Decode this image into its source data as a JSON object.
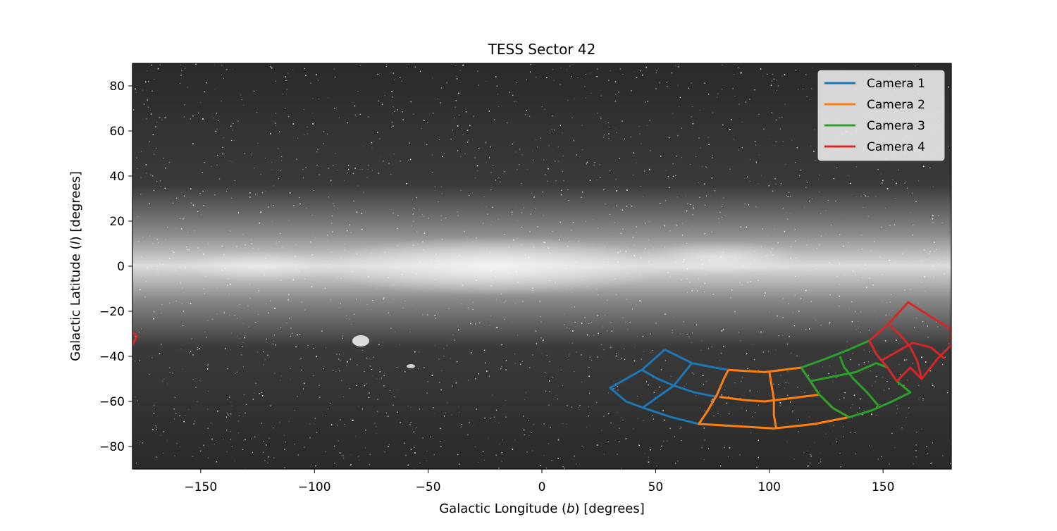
{
  "chart_data": {
    "type": "line",
    "title": "TESS Sector 42",
    "xlabel_parts": [
      "Galactic Longitude (",
      "b",
      ") [degrees]"
    ],
    "ylabel_parts": [
      "Galactic Latitude (",
      "l",
      ") [degrees]"
    ],
    "xlim": [
      -180,
      180
    ],
    "ylim": [
      -90,
      90
    ],
    "xticks": [
      -150,
      -100,
      -50,
      0,
      50,
      100,
      150
    ],
    "yticks": [
      -80,
      -60,
      -40,
      -20,
      0,
      20,
      40,
      60,
      80
    ],
    "xtick_labels": [
      "−150",
      "−100",
      "−50",
      "0",
      "50",
      "100",
      "150"
    ],
    "ytick_labels": [
      "−80",
      "−60",
      "−40",
      "−20",
      "0",
      "20",
      "40",
      "60",
      "80"
    ],
    "background": "all-sky Milky Way star map (grayscale)",
    "legend": {
      "placement": "upper right"
    },
    "series": [
      {
        "name": "Camera 1",
        "color": "#1f77b4",
        "outline": [
          [
            54,
            -37
          ],
          [
            44,
            -46
          ],
          [
            30,
            -54
          ],
          [
            37,
            -60
          ],
          [
            45,
            -63
          ],
          [
            57,
            -67
          ],
          [
            69,
            -70
          ],
          [
            73,
            -64
          ],
          [
            77,
            -57
          ],
          [
            80,
            -50
          ],
          [
            82,
            -46
          ],
          [
            76,
            -45
          ],
          [
            66,
            -43
          ],
          [
            60,
            -40
          ],
          [
            54,
            -37
          ]
        ],
        "grid_lines": [
          [
            [
              66,
              -43
            ],
            [
              62,
              -48
            ],
            [
              58,
              -53
            ],
            [
              51,
              -58
            ],
            [
              44,
              -63
            ]
          ],
          [
            [
              44,
              -46
            ],
            [
              51,
              -50
            ],
            [
              58,
              -53
            ],
            [
              67,
              -56
            ],
            [
              77,
              -58
            ]
          ]
        ]
      },
      {
        "name": "Camera 2",
        "color": "#ff7f0e",
        "outline": [
          [
            82,
            -46
          ],
          [
            98,
            -47
          ],
          [
            114,
            -45
          ],
          [
            118,
            -51
          ],
          [
            122,
            -57
          ],
          [
            128,
            -63
          ],
          [
            135,
            -67
          ],
          [
            120,
            -70
          ],
          [
            102,
            -72
          ],
          [
            86,
            -71
          ],
          [
            69,
            -70
          ],
          [
            73,
            -64
          ],
          [
            77,
            -57
          ],
          [
            80,
            -50
          ],
          [
            82,
            -46
          ]
        ],
        "grid_lines": [
          [
            [
              100,
              -47
            ],
            [
              101,
              -53
            ],
            [
              102,
              -59
            ],
            [
              102,
              -66
            ],
            [
              103,
              -72
            ]
          ],
          [
            [
              78,
              -58
            ],
            [
              90,
              -59.5
            ],
            [
              98,
              -60
            ],
            [
              110,
              -58.5
            ],
            [
              122,
              -57
            ]
          ]
        ]
      },
      {
        "name": "Camera 3",
        "color": "#2ca02c",
        "outline": [
          [
            114,
            -45
          ],
          [
            125,
            -41
          ],
          [
            135,
            -37
          ],
          [
            144,
            -33
          ],
          [
            147,
            -39
          ],
          [
            152,
            -45
          ],
          [
            156,
            -51
          ],
          [
            162,
            -56
          ],
          [
            154,
            -60
          ],
          [
            145,
            -64
          ],
          [
            135,
            -67
          ],
          [
            128,
            -63
          ],
          [
            122,
            -57
          ],
          [
            118,
            -51
          ],
          [
            114,
            -45
          ]
        ],
        "grid_lines": [
          [
            [
              131,
              -40
            ],
            [
              133,
              -45
            ],
            [
              137,
              -50
            ],
            [
              143,
              -56
            ],
            [
              148,
              -62
            ]
          ],
          [
            [
              118,
              -51
            ],
            [
              128,
              -49
            ],
            [
              138,
              -47
            ],
            [
              147,
              -43
            ],
            [
              152,
              -45
            ]
          ]
        ]
      },
      {
        "name": "Camera 4",
        "color": "#d62728",
        "outline": [
          [
            144,
            -33
          ],
          [
            152,
            -26
          ],
          [
            161,
            -16
          ],
          [
            172,
            -23
          ],
          [
            180,
            -28
          ],
          [
            180,
            -35
          ],
          [
            174,
            -41
          ],
          [
            167,
            -50
          ],
          [
            162,
            -45
          ],
          [
            156,
            -51
          ],
          [
            152,
            -45
          ],
          [
            147,
            -39
          ],
          [
            144,
            -33
          ]
        ],
        "grid_lines": [
          [
            [
              153,
              -26
            ],
            [
              158,
              -31
            ],
            [
              162,
              -36
            ],
            [
              165,
              -42
            ],
            [
              167,
              -50
            ]
          ],
          [
            [
              149,
              -42
            ],
            [
              156,
              -38
            ],
            [
              163,
              -34
            ],
            [
              171,
              -36
            ],
            [
              177,
              -41
            ]
          ]
        ],
        "wrap_fragment": [
          [
            -180,
            -29
          ],
          [
            -178,
            -31
          ],
          [
            -180,
            -35
          ]
        ]
      }
    ]
  }
}
